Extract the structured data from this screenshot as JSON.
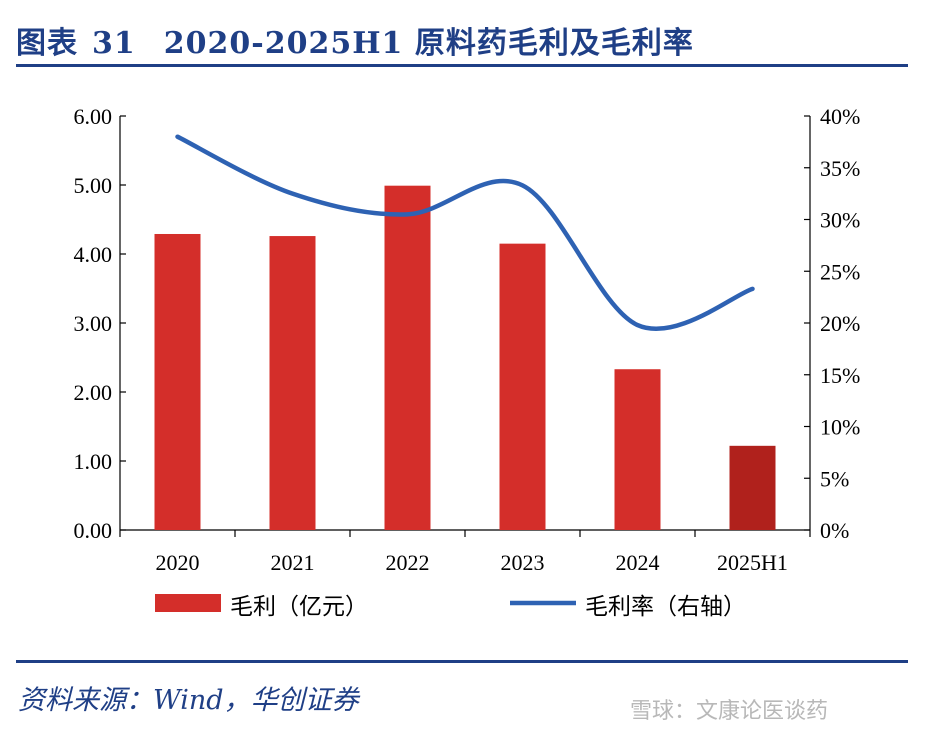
{
  "header": {
    "label": "图表",
    "number": "31",
    "text": "2020-2025H1 原料药毛利及毛利率"
  },
  "footer": {
    "source": "资料来源：Wind，华创证券",
    "watermark": "雪球：文康论医谈药"
  },
  "colors": {
    "bar": "#d42e2a",
    "bar_last": "#b0211c",
    "line": "#2e62b3",
    "title": "#1f3f86"
  },
  "chart_data": {
    "type": "bar+line",
    "title": "2020-2025H1 原料药毛利及毛利率",
    "categories": [
      "2020",
      "2021",
      "2022",
      "2023",
      "2024",
      "2025H1"
    ],
    "series": [
      {
        "name": "毛利（亿元）",
        "type": "bar",
        "axis": "left",
        "values": [
          4.29,
          4.26,
          4.99,
          4.15,
          2.33,
          1.22
        ]
      },
      {
        "name": "毛利率（右轴）",
        "type": "line",
        "axis": "right",
        "values": [
          38.0,
          32.5,
          30.5,
          33.3,
          19.8,
          23.3
        ]
      }
    ],
    "y_left": {
      "min": 0,
      "max": 6,
      "ticks": [
        "0.00",
        "1.00",
        "2.00",
        "3.00",
        "4.00",
        "5.00",
        "6.00"
      ]
    },
    "y_right": {
      "min": 0,
      "max": 40,
      "ticks": [
        "0%",
        "5%",
        "10%",
        "15%",
        "20%",
        "25%",
        "30%",
        "35%",
        "40%"
      ]
    },
    "legend": [
      {
        "label": "毛利（亿元）",
        "kind": "bar"
      },
      {
        "label": "毛利率（右轴）",
        "kind": "line"
      }
    ]
  }
}
